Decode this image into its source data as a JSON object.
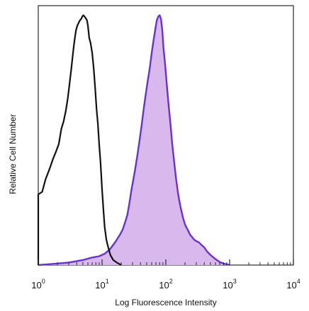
{
  "chart_data": {
    "type": "area",
    "title": "",
    "xlabel": "Log Fluorescence Intensity",
    "ylabel": "Relative Cell Number",
    "x_scale": "log",
    "xlim": [
      1,
      10000
    ],
    "ylim": [
      0,
      1
    ],
    "x_ticks": [
      {
        "base": "10",
        "exp": "0"
      },
      {
        "base": "10",
        "exp": "1"
      },
      {
        "base": "10",
        "exp": "2"
      },
      {
        "base": "10",
        "exp": "3"
      },
      {
        "base": "10",
        "exp": "4"
      }
    ],
    "grid": false,
    "series": [
      {
        "style": "outline",
        "color": "#111111",
        "points": [
          [
            1.0,
            0.0
          ],
          [
            1.0,
            0.28
          ],
          [
            1.15,
            0.29
          ],
          [
            1.3,
            0.34
          ],
          [
            1.5,
            0.38
          ],
          [
            1.7,
            0.42
          ],
          [
            1.9,
            0.45
          ],
          [
            2.1,
            0.48
          ],
          [
            2.3,
            0.54
          ],
          [
            2.5,
            0.57
          ],
          [
            2.7,
            0.61
          ],
          [
            2.9,
            0.66
          ],
          [
            3.1,
            0.72
          ],
          [
            3.3,
            0.78
          ],
          [
            3.5,
            0.84
          ],
          [
            3.7,
            0.89
          ],
          [
            3.9,
            0.93
          ],
          [
            4.1,
            0.95
          ],
          [
            4.3,
            0.96
          ],
          [
            4.5,
            0.97
          ],
          [
            4.7,
            0.975
          ],
          [
            4.9,
            0.985
          ],
          [
            5.1,
            0.99
          ],
          [
            5.3,
            0.985
          ],
          [
            5.5,
            0.98
          ],
          [
            5.8,
            0.97
          ],
          [
            6.0,
            0.95
          ],
          [
            6.3,
            0.9
          ],
          [
            6.6,
            0.88
          ],
          [
            7.0,
            0.84
          ],
          [
            7.4,
            0.78
          ],
          [
            7.8,
            0.7
          ],
          [
            8.2,
            0.62
          ],
          [
            8.6,
            0.56
          ],
          [
            9.0,
            0.48
          ],
          [
            9.5,
            0.4
          ],
          [
            10.0,
            0.3
          ],
          [
            10.5,
            0.22
          ],
          [
            11.0,
            0.15
          ],
          [
            11.7,
            0.1
          ],
          [
            12.5,
            0.07
          ],
          [
            13.5,
            0.04
          ],
          [
            15,
            0.02
          ],
          [
            17,
            0.01
          ],
          [
            20,
            0.0
          ]
        ]
      },
      {
        "style": "filled",
        "color": "#6633cc",
        "fill": "#d9b8ee",
        "points": [
          [
            1.0,
            0.0
          ],
          [
            1.8,
            0.005
          ],
          [
            3,
            0.01
          ],
          [
            5,
            0.02
          ],
          [
            7,
            0.03
          ],
          [
            9,
            0.035
          ],
          [
            11,
            0.045
          ],
          [
            13,
            0.06
          ],
          [
            15,
            0.08
          ],
          [
            17,
            0.1
          ],
          [
            19,
            0.12
          ],
          [
            21,
            0.14
          ],
          [
            23,
            0.17
          ],
          [
            25,
            0.2
          ],
          [
            27,
            0.25
          ],
          [
            29,
            0.3
          ],
          [
            31,
            0.34
          ],
          [
            33,
            0.38
          ],
          [
            36,
            0.44
          ],
          [
            39,
            0.5
          ],
          [
            42,
            0.56
          ],
          [
            45,
            0.62
          ],
          [
            48,
            0.67
          ],
          [
            52,
            0.73
          ],
          [
            56,
            0.78
          ],
          [
            60,
            0.84
          ],
          [
            64,
            0.89
          ],
          [
            68,
            0.93
          ],
          [
            72,
            0.97
          ],
          [
            76,
            0.985
          ],
          [
            80,
            0.99
          ],
          [
            84,
            0.975
          ],
          [
            88,
            0.93
          ],
          [
            92,
            0.86
          ],
          [
            97,
            0.8
          ],
          [
            103,
            0.72
          ],
          [
            110,
            0.64
          ],
          [
            118,
            0.56
          ],
          [
            126,
            0.48
          ],
          [
            135,
            0.41
          ],
          [
            145,
            0.34
          ],
          [
            156,
            0.28
          ],
          [
            170,
            0.23
          ],
          [
            185,
            0.19
          ],
          [
            200,
            0.16
          ],
          [
            220,
            0.14
          ],
          [
            240,
            0.12
          ],
          [
            260,
            0.11
          ],
          [
            280,
            0.1
          ],
          [
            300,
            0.095
          ],
          [
            330,
            0.09
          ],
          [
            360,
            0.08
          ],
          [
            400,
            0.07
          ],
          [
            440,
            0.055
          ],
          [
            500,
            0.04
          ],
          [
            560,
            0.03
          ],
          [
            630,
            0.02
          ],
          [
            700,
            0.012
          ],
          [
            800,
            0.006
          ],
          [
            900,
            0.003
          ],
          [
            1000,
            0.0
          ]
        ]
      }
    ]
  }
}
